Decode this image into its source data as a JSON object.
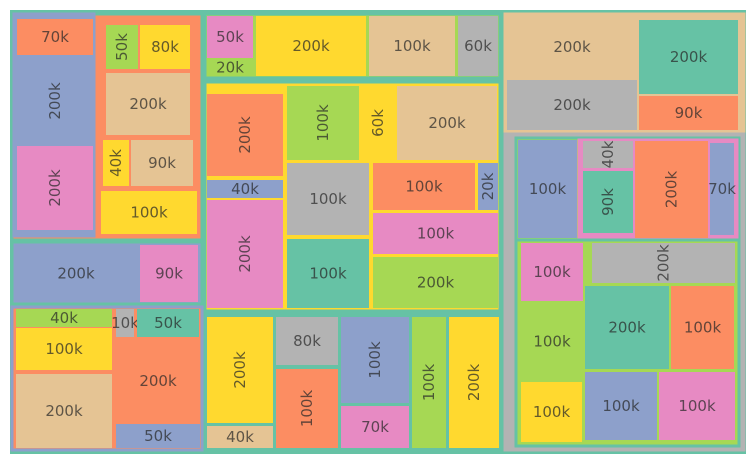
{
  "chart_data": {
    "type": "treemap",
    "title": "",
    "palette": {
      "green": "#66C2A5",
      "orange": "#FC8D62",
      "blue": "#8DA0CB",
      "pink": "#E78AC3",
      "lime": "#A6D854",
      "yellow": "#FFD92F",
      "tan": "#E5C494",
      "gray": "#B3B3B3"
    },
    "leaves": [
      {
        "label": "70k",
        "value": 70,
        "color": "orange"
      },
      {
        "label": "200k",
        "value": 200,
        "color": "blue"
      },
      {
        "label": "200k",
        "value": 200,
        "color": "pink"
      },
      {
        "label": "50k",
        "value": 50,
        "color": "lime"
      },
      {
        "label": "80k",
        "value": 80,
        "color": "yellow"
      },
      {
        "label": "200k",
        "value": 200,
        "color": "tan"
      },
      {
        "label": "40k",
        "value": 40,
        "color": "yellow"
      },
      {
        "label": "90k",
        "value": 90,
        "color": "tan"
      },
      {
        "label": "100k",
        "value": 100,
        "color": "yellow"
      },
      {
        "label": "200k",
        "value": 200,
        "color": "blue"
      },
      {
        "label": "90k",
        "value": 90,
        "color": "pink"
      },
      {
        "label": "40k",
        "value": 40,
        "color": "lime"
      },
      {
        "label": "10k",
        "value": 10,
        "color": "gray"
      },
      {
        "label": "50k",
        "value": 50,
        "color": "green"
      },
      {
        "label": "100k",
        "value": 100,
        "color": "yellow"
      },
      {
        "label": "200k",
        "value": 200,
        "color": "orange"
      },
      {
        "label": "200k",
        "value": 200,
        "color": "tan"
      },
      {
        "label": "50k",
        "value": 50,
        "color": "blue"
      },
      {
        "label": "50k",
        "value": 50,
        "color": "pink"
      },
      {
        "label": "20k",
        "value": 20,
        "color": "lime"
      },
      {
        "label": "200k",
        "value": 200,
        "color": "yellow"
      },
      {
        "label": "100k",
        "value": 100,
        "color": "tan"
      },
      {
        "label": "60k",
        "value": 60,
        "color": "gray"
      },
      {
        "label": "200k",
        "value": 200,
        "color": "orange"
      },
      {
        "label": "40k",
        "value": 40,
        "color": "blue"
      },
      {
        "label": "200k",
        "value": 200,
        "color": "pink"
      },
      {
        "label": "100k",
        "value": 100,
        "color": "lime"
      },
      {
        "label": "60k",
        "value": 60,
        "color": "yellow"
      },
      {
        "label": "200k",
        "value": 200,
        "color": "tan"
      },
      {
        "label": "100k",
        "value": 100,
        "color": "gray"
      },
      {
        "label": "100k",
        "value": 100,
        "color": "green"
      },
      {
        "label": "100k",
        "value": 100,
        "color": "orange"
      },
      {
        "label": "20k",
        "value": 20,
        "color": "blue"
      },
      {
        "label": "100k",
        "value": 100,
        "color": "pink"
      },
      {
        "label": "200k",
        "value": 200,
        "color": "lime"
      },
      {
        "label": "200k",
        "value": 200,
        "color": "yellow"
      },
      {
        "label": "40k",
        "value": 40,
        "color": "tan"
      },
      {
        "label": "80k",
        "value": 80,
        "color": "gray"
      },
      {
        "label": "100k",
        "value": 100,
        "color": "orange"
      },
      {
        "label": "100k",
        "value": 100,
        "color": "blue"
      },
      {
        "label": "70k",
        "value": 70,
        "color": "pink"
      },
      {
        "label": "100k",
        "value": 100,
        "color": "lime"
      },
      {
        "label": "200k",
        "value": 200,
        "color": "yellow"
      },
      {
        "label": "200k",
        "value": 200,
        "color": "tan"
      },
      {
        "label": "200k",
        "value": 200,
        "color": "green"
      },
      {
        "label": "200k",
        "value": 200,
        "color": "gray"
      },
      {
        "label": "90k",
        "value": 90,
        "color": "orange"
      },
      {
        "label": "100k",
        "value": 100,
        "color": "blue"
      },
      {
        "label": "40k",
        "value": 40,
        "color": "gray"
      },
      {
        "label": "90k",
        "value": 90,
        "color": "green"
      },
      {
        "label": "200k",
        "value": 200,
        "color": "orange"
      },
      {
        "label": "70k",
        "value": 70,
        "color": "blue"
      },
      {
        "label": "100k",
        "value": 100,
        "color": "pink"
      },
      {
        "label": "200k",
        "value": 200,
        "color": "gray"
      },
      {
        "label": "100k",
        "value": 100,
        "color": "lime"
      },
      {
        "label": "200k",
        "value": 200,
        "color": "green"
      },
      {
        "label": "100k",
        "value": 100,
        "color": "orange"
      },
      {
        "label": "100k",
        "value": 100,
        "color": "yellow"
      },
      {
        "label": "100k",
        "value": 100,
        "color": "blue"
      },
      {
        "label": "100k",
        "value": 100,
        "color": "pink"
      }
    ]
  }
}
